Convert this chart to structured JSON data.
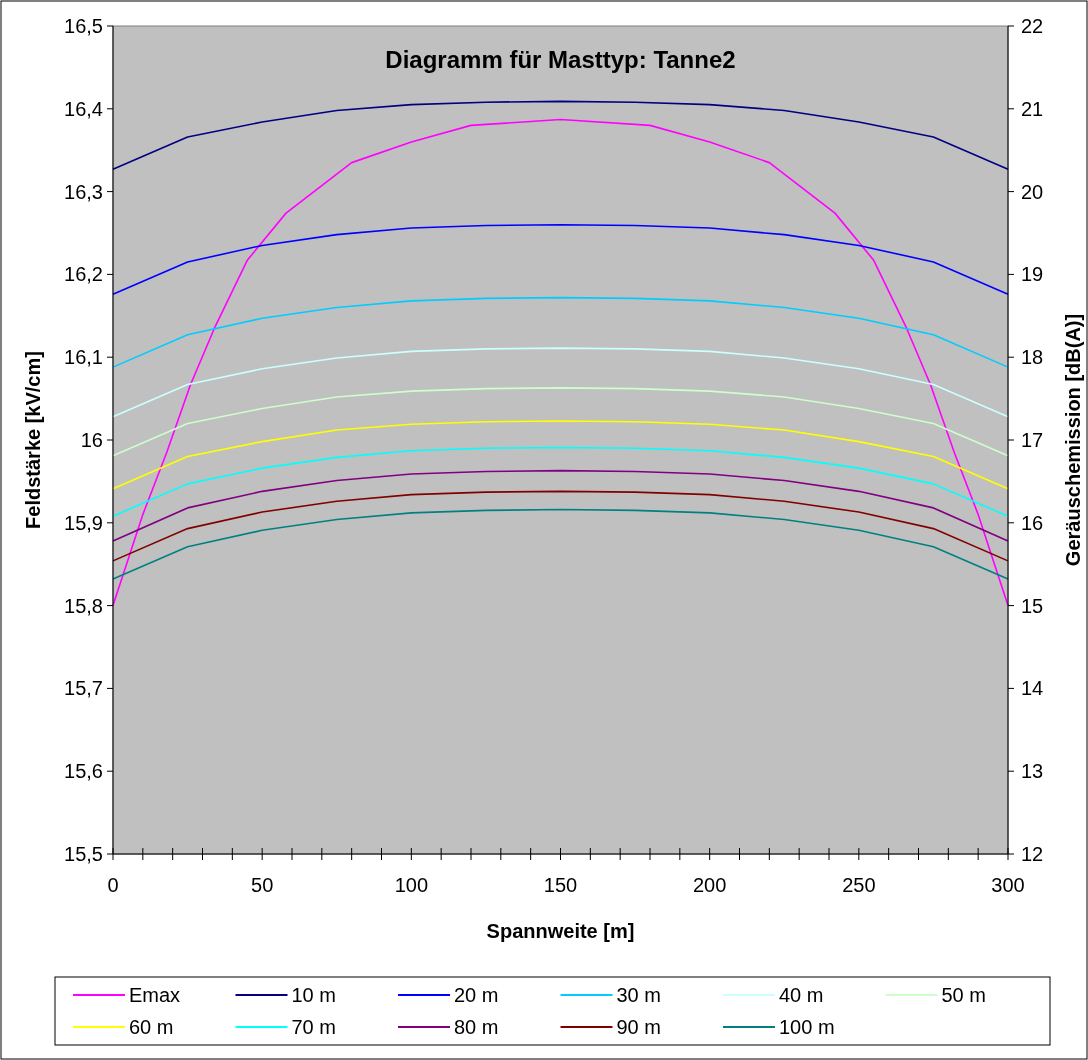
{
  "chart_data": {
    "type": "line",
    "title": "Diagramm für Masttyp: Tanne2",
    "xlabel": "Spannweite [m]",
    "ylabel": "Feldstärke [kV/cm]",
    "y2label": "Geräuschemission [dB(A)]",
    "x": [
      0,
      25,
      50,
      75,
      100,
      125,
      150,
      175,
      200,
      225,
      250,
      275,
      300
    ],
    "xlim": [
      0,
      300
    ],
    "xticks": [
      0,
      {
        "value": 10,
        "label": null
      },
      {
        "value": 20,
        "label": null
      },
      {
        "value": 30,
        "label": null
      },
      {
        "value": 40,
        "label": null
      },
      50,
      {
        "value": 60,
        "label": null
      },
      {
        "value": 70,
        "label": null
      },
      {
        "value": 80,
        "label": null
      },
      {
        "value": 90,
        "label": null
      },
      100,
      {
        "value": 110,
        "label": null
      },
      {
        "value": 120,
        "label": null
      },
      {
        "value": 130,
        "label": null
      },
      {
        "value": 140,
        "label": null
      },
      150,
      {
        "value": 160,
        "label": null
      },
      {
        "value": 170,
        "label": null
      },
      {
        "value": 180,
        "label": null
      },
      {
        "value": 190,
        "label": null
      },
      200,
      {
        "value": 210,
        "label": null
      },
      {
        "value": 220,
        "label": null
      },
      {
        "value": 230,
        "label": null
      },
      {
        "value": 240,
        "label": null
      },
      250,
      {
        "value": 260,
        "label": null
      },
      {
        "value": 270,
        "label": null
      },
      {
        "value": 280,
        "label": null
      },
      {
        "value": 290,
        "label": null
      },
      300
    ],
    "ylim": [
      15.5,
      16.5
    ],
    "yticks": [
      {
        "value": 15.5,
        "label": "15,5"
      },
      {
        "value": 15.6,
        "label": "15,6"
      },
      {
        "value": 15.7,
        "label": "15,7"
      },
      {
        "value": 15.8,
        "label": "15,8"
      },
      {
        "value": 15.9,
        "label": "15,9"
      },
      16,
      {
        "value": 16.1,
        "label": "16,1"
      },
      {
        "value": 16.2,
        "label": "16,2"
      },
      {
        "value": 16.3,
        "label": "16,3"
      },
      {
        "value": 16.4,
        "label": "16,4"
      },
      {
        "value": 16.5,
        "label": "16,5"
      }
    ],
    "y2lim": [
      12,
      22
    ],
    "y2ticks": [
      12,
      13,
      14,
      15,
      16,
      17,
      18,
      19,
      20,
      21,
      22
    ],
    "grid": false,
    "legend": "bottom",
    "marker": "none",
    "line_style": "solid",
    "series": [
      {
        "name": "Emax",
        "color": "#ff00ff",
        "x": [
          0,
          10,
          18,
          26,
          34,
          45,
          58,
          80,
          100,
          120,
          150,
          180,
          200,
          220,
          242,
          255,
          266,
          274,
          282,
          290,
          300
        ],
        "values": [
          15.8,
          15.91,
          15.985,
          16.067,
          16.135,
          16.217,
          16.274,
          16.335,
          16.36,
          16.38,
          16.387,
          16.38,
          16.36,
          16.335,
          16.274,
          16.217,
          16.135,
          16.067,
          15.985,
          15.91,
          15.8
        ]
      },
      {
        "name": "10 m",
        "color": "#000080",
        "axis": "y2",
        "values": [
          20.27,
          20.66,
          20.84,
          20.98,
          21.05,
          21.08,
          21.09,
          21.08,
          21.05,
          20.98,
          20.84,
          20.66,
          20.27
        ]
      },
      {
        "name": "20 m",
        "color": "#0000ff",
        "axis": "y2",
        "values": [
          18.76,
          19.15,
          19.35,
          19.48,
          19.56,
          19.59,
          19.6,
          19.59,
          19.56,
          19.48,
          19.35,
          19.15,
          18.76
        ]
      },
      {
        "name": "30 m",
        "color": "#00ccff",
        "axis": "y2",
        "values": [
          17.88,
          18.27,
          18.47,
          18.6,
          18.68,
          18.71,
          18.72,
          18.71,
          18.68,
          18.6,
          18.47,
          18.27,
          17.88
        ]
      },
      {
        "name": "40 m",
        "color": "#ccffff",
        "axis": "y2",
        "values": [
          17.28,
          17.67,
          17.86,
          17.99,
          18.07,
          18.1,
          18.11,
          18.1,
          18.07,
          17.99,
          17.86,
          17.67,
          17.28
        ]
      },
      {
        "name": "50 m",
        "color": "#ccffcc",
        "axis": "y2",
        "values": [
          16.81,
          17.2,
          17.38,
          17.52,
          17.59,
          17.62,
          17.63,
          17.62,
          17.59,
          17.52,
          17.38,
          17.2,
          16.81
        ]
      },
      {
        "name": "60 m",
        "color": "#ffff00",
        "axis": "y2",
        "values": [
          16.41,
          16.8,
          16.98,
          17.12,
          17.19,
          17.22,
          17.23,
          17.22,
          17.19,
          17.12,
          16.98,
          16.8,
          16.41
        ]
      },
      {
        "name": "70 m",
        "color": "#00ffff",
        "axis": "y2",
        "values": [
          16.08,
          16.47,
          16.66,
          16.79,
          16.87,
          16.9,
          16.91,
          16.9,
          16.87,
          16.79,
          16.66,
          16.47,
          16.08
        ]
      },
      {
        "name": "80 m",
        "color": "#800080",
        "axis": "y2",
        "values": [
          15.78,
          16.18,
          16.38,
          16.51,
          16.59,
          16.62,
          16.63,
          16.62,
          16.59,
          16.51,
          16.38,
          16.18,
          15.78
        ]
      },
      {
        "name": "90 m",
        "color": "#800000",
        "axis": "y2",
        "values": [
          15.54,
          15.93,
          16.13,
          16.26,
          16.34,
          16.37,
          16.38,
          16.37,
          16.34,
          16.26,
          16.13,
          15.93,
          15.54
        ]
      },
      {
        "name": "100 m",
        "color": "#008080",
        "axis": "y2",
        "values": [
          15.32,
          15.71,
          15.91,
          16.04,
          16.12,
          16.15,
          16.16,
          16.15,
          16.12,
          16.04,
          15.91,
          15.71,
          15.32
        ]
      }
    ]
  }
}
